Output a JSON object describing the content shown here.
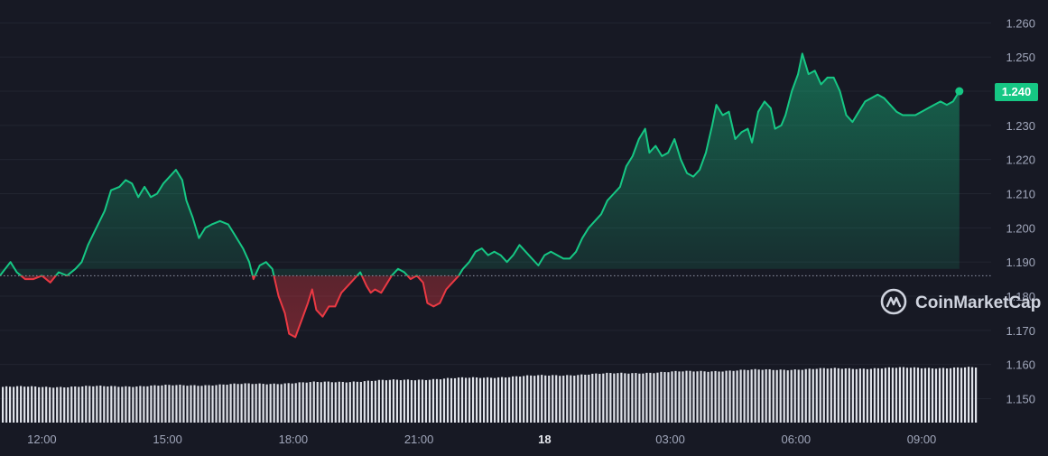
{
  "watermark": {
    "text": "CoinMarketCap",
    "icon": "coinmarketcap-logo-icon"
  },
  "colors": {
    "background": "#171924",
    "grid": "#222531",
    "up": "#16c784",
    "down": "#ea3943",
    "volume": "#e0e3ea",
    "baseline": "#8f95a8",
    "badge_text": "#ffffff"
  },
  "price_badge": "1.240",
  "chart_data": {
    "type": "line",
    "title": "",
    "xlabel": "",
    "ylabel": "",
    "x_ticks": [
      "12:00",
      "15:00",
      "18:00",
      "21:00",
      "18",
      "03:00",
      "06:00",
      "09:00"
    ],
    "x_tick_hours": [
      12,
      15,
      18,
      21,
      24,
      27,
      30,
      33
    ],
    "y_ticks": [
      "1.150",
      "1.160",
      "1.170",
      "1.180",
      "1.190",
      "1.200",
      "1.210",
      "1.220",
      "1.230",
      "1.240",
      "1.250",
      "1.260"
    ],
    "ylim": [
      1.143,
      1.263
    ],
    "xlim": [
      11.0,
      34.4
    ],
    "baseline": 1.186,
    "grid": true,
    "series": [
      {
        "points": [
          [
            11.0,
            1.186
          ],
          [
            11.25,
            1.19
          ],
          [
            11.4,
            1.187
          ],
          [
            11.6,
            1.185
          ],
          [
            11.8,
            1.185
          ],
          [
            12.0,
            1.186
          ],
          [
            12.2,
            1.184
          ],
          [
            12.4,
            1.187
          ],
          [
            12.6,
            1.186
          ],
          [
            12.8,
            1.188
          ],
          [
            12.95,
            1.19
          ],
          [
            13.1,
            1.195
          ],
          [
            13.3,
            1.2
          ],
          [
            13.5,
            1.205
          ],
          [
            13.65,
            1.211
          ],
          [
            13.85,
            1.212
          ],
          [
            14.0,
            1.214
          ],
          [
            14.15,
            1.213
          ],
          [
            14.3,
            1.209
          ],
          [
            14.45,
            1.212
          ],
          [
            14.6,
            1.209
          ],
          [
            14.75,
            1.21
          ],
          [
            14.9,
            1.213
          ],
          [
            15.05,
            1.215
          ],
          [
            15.2,
            1.217
          ],
          [
            15.35,
            1.214
          ],
          [
            15.45,
            1.208
          ],
          [
            15.6,
            1.203
          ],
          [
            15.75,
            1.197
          ],
          [
            15.9,
            1.2
          ],
          [
            16.05,
            1.201
          ],
          [
            16.25,
            1.202
          ],
          [
            16.45,
            1.201
          ],
          [
            16.6,
            1.198
          ],
          [
            16.8,
            1.194
          ],
          [
            16.95,
            1.19
          ],
          [
            17.05,
            1.185
          ],
          [
            17.2,
            1.189
          ],
          [
            17.35,
            1.19
          ],
          [
            17.5,
            1.188
          ],
          [
            17.65,
            1.18
          ],
          [
            17.8,
            1.175
          ],
          [
            17.9,
            1.169
          ],
          [
            18.05,
            1.168
          ],
          [
            18.2,
            1.173
          ],
          [
            18.35,
            1.178
          ],
          [
            18.45,
            1.182
          ],
          [
            18.55,
            1.176
          ],
          [
            18.7,
            1.174
          ],
          [
            18.85,
            1.177
          ],
          [
            19.0,
            1.177
          ],
          [
            19.15,
            1.181
          ],
          [
            19.3,
            1.183
          ],
          [
            19.45,
            1.185
          ],
          [
            19.6,
            1.187
          ],
          [
            19.75,
            1.183
          ],
          [
            19.85,
            1.181
          ],
          [
            19.95,
            1.182
          ],
          [
            20.1,
            1.181
          ],
          [
            20.2,
            1.183
          ],
          [
            20.35,
            1.186
          ],
          [
            20.5,
            1.188
          ],
          [
            20.65,
            1.187
          ],
          [
            20.8,
            1.185
          ],
          [
            20.95,
            1.186
          ],
          [
            21.1,
            1.184
          ],
          [
            21.2,
            1.178
          ],
          [
            21.35,
            1.177
          ],
          [
            21.5,
            1.178
          ],
          [
            21.65,
            1.182
          ],
          [
            21.8,
            1.184
          ],
          [
            21.95,
            1.186
          ],
          [
            22.05,
            1.188
          ],
          [
            22.2,
            1.19
          ],
          [
            22.35,
            1.193
          ],
          [
            22.5,
            1.194
          ],
          [
            22.65,
            1.192
          ],
          [
            22.8,
            1.193
          ],
          [
            22.95,
            1.192
          ],
          [
            23.1,
            1.19
          ],
          [
            23.25,
            1.192
          ],
          [
            23.4,
            1.195
          ],
          [
            23.55,
            1.193
          ],
          [
            23.7,
            1.191
          ],
          [
            23.85,
            1.189
          ],
          [
            24.0,
            1.192
          ],
          [
            24.15,
            1.193
          ],
          [
            24.3,
            1.192
          ],
          [
            24.45,
            1.191
          ],
          [
            24.6,
            1.191
          ],
          [
            24.75,
            1.193
          ],
          [
            24.9,
            1.197
          ],
          [
            25.05,
            1.2
          ],
          [
            25.2,
            1.202
          ],
          [
            25.35,
            1.204
          ],
          [
            25.5,
            1.208
          ],
          [
            25.65,
            1.21
          ],
          [
            25.8,
            1.212
          ],
          [
            25.95,
            1.218
          ],
          [
            26.1,
            1.221
          ],
          [
            26.25,
            1.226
          ],
          [
            26.4,
            1.229
          ],
          [
            26.5,
            1.222
          ],
          [
            26.65,
            1.224
          ],
          [
            26.8,
            1.221
          ],
          [
            26.95,
            1.222
          ],
          [
            27.1,
            1.226
          ],
          [
            27.25,
            1.22
          ],
          [
            27.4,
            1.216
          ],
          [
            27.55,
            1.215
          ],
          [
            27.7,
            1.217
          ],
          [
            27.85,
            1.222
          ],
          [
            28.0,
            1.23
          ],
          [
            28.1,
            1.236
          ],
          [
            28.25,
            1.233
          ],
          [
            28.4,
            1.234
          ],
          [
            28.55,
            1.226
          ],
          [
            28.7,
            1.228
          ],
          [
            28.85,
            1.229
          ],
          [
            28.95,
            1.225
          ],
          [
            29.1,
            1.234
          ],
          [
            29.25,
            1.237
          ],
          [
            29.4,
            1.235
          ],
          [
            29.5,
            1.229
          ],
          [
            29.65,
            1.23
          ],
          [
            29.75,
            1.233
          ],
          [
            29.9,
            1.24
          ],
          [
            30.05,
            1.245
          ],
          [
            30.15,
            1.251
          ],
          [
            30.3,
            1.245
          ],
          [
            30.45,
            1.246
          ],
          [
            30.6,
            1.242
          ],
          [
            30.75,
            1.244
          ],
          [
            30.9,
            1.244
          ],
          [
            31.05,
            1.24
          ],
          [
            31.2,
            1.233
          ],
          [
            31.35,
            1.231
          ],
          [
            31.5,
            1.234
          ],
          [
            31.65,
            1.237
          ],
          [
            31.8,
            1.238
          ],
          [
            31.95,
            1.239
          ],
          [
            32.1,
            1.238
          ],
          [
            32.25,
            1.236
          ],
          [
            32.4,
            1.234
          ],
          [
            32.55,
            1.233
          ],
          [
            32.7,
            1.233
          ],
          [
            32.85,
            1.233
          ],
          [
            33.0,
            1.234
          ],
          [
            33.15,
            1.235
          ],
          [
            33.3,
            1.236
          ],
          [
            33.45,
            1.237
          ],
          [
            33.6,
            1.236
          ],
          [
            33.75,
            1.237
          ],
          [
            33.9,
            1.24
          ]
        ]
      }
    ],
    "volume": {
      "bar_count": 270,
      "scale": "relative",
      "start_level": 0.52,
      "end_level": 0.8
    }
  }
}
